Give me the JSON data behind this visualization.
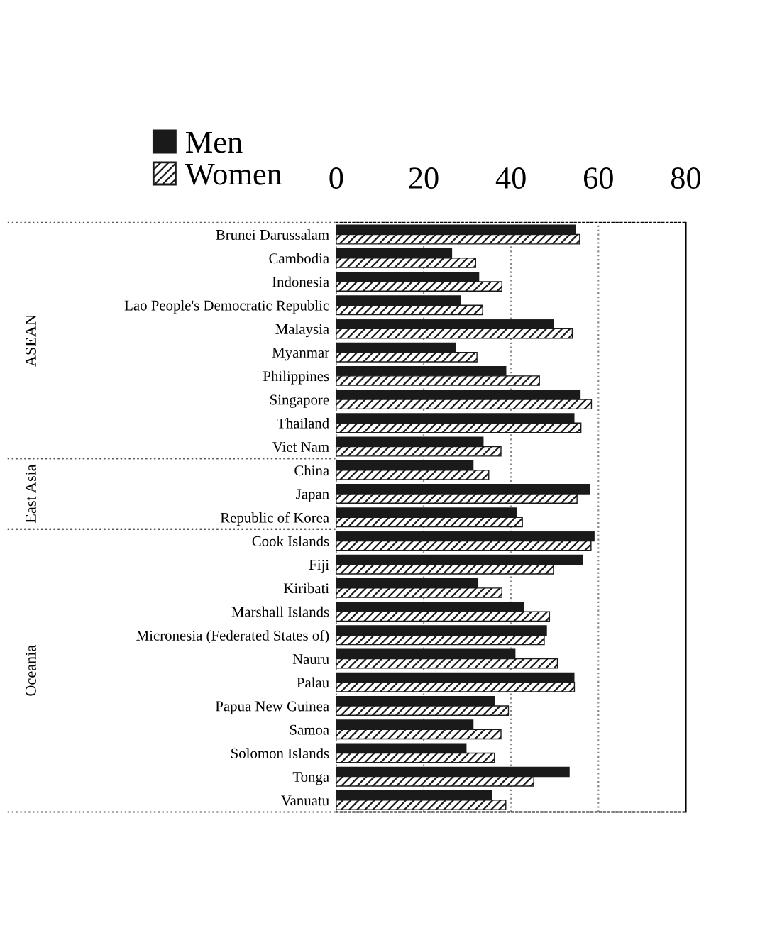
{
  "chart_data": {
    "type": "bar",
    "orientation": "horizontal",
    "categories": [
      "Brunei Darussalam",
      "Cambodia",
      "Indonesia",
      "Lao People's Democratic Republic",
      "Malaysia",
      "Myanmar",
      "Philippines",
      "Singapore",
      "Thailand",
      "Viet Nam",
      "China",
      "Japan",
      "Republic of Korea",
      "Cook Islands",
      "Fiji",
      "Kiribati",
      "Marshall Islands",
      "Micronesia (Federated States of)",
      "Nauru",
      "Palau",
      "Papua New Guinea",
      "Samoa",
      "Solomon Islands",
      "Tonga",
      "Vanuatu"
    ],
    "series": [
      {
        "name": "Men",
        "color": "#1a1a1a",
        "values": [
          54.7,
          26.4,
          32.6,
          28.4,
          49.7,
          27.3,
          38.8,
          55.8,
          54.4,
          33.6,
          31.3,
          58,
          41.2,
          59,
          56.3,
          32.4,
          42.9,
          48.1,
          40.9,
          54.4,
          36.2,
          31.3,
          29.7,
          53.3,
          35.6
        ]
      },
      {
        "name": "Women",
        "color": "#1a1a1a",
        "values": [
          55.7,
          31.9,
          37.9,
          33.5,
          54,
          32.2,
          46.5,
          58.4,
          56,
          37.7,
          34.9,
          55.1,
          42.6,
          58.3,
          49.7,
          37.9,
          48.8,
          47.6,
          50.6,
          54.5,
          39.4,
          37.7,
          36.2,
          45.2,
          38.8
        ]
      }
    ],
    "xlim": [
      0,
      80
    ],
    "xticks": [
      0,
      20,
      40,
      60,
      80
    ],
    "grid": "x",
    "legend": "top left",
    "annotations": [
      "ASEAN",
      "East Asia",
      "Oceania"
    ]
  }
}
